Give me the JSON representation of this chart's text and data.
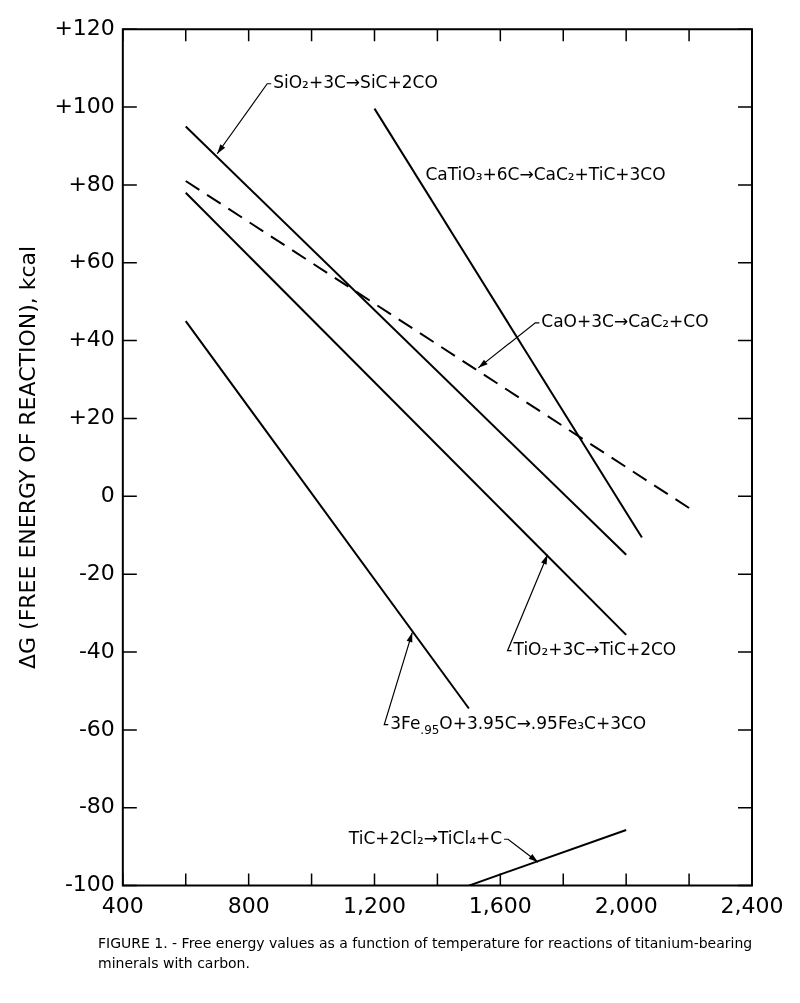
{
  "chart_data": {
    "type": "line",
    "title": "FIGURE 1. - Free energy values as a function of temperature for reactions of titanium-bearing minerals with carbon.",
    "ylabel": "ΔG (FREE ENERGY OF REACTION), kcal",
    "series": [
      {
        "color": "#000000",
        "x": [
          600,
          2000
        ],
        "values": [
          95,
          -15
        ]
      },
      {
        "color": "#000000",
        "x": [
          1200,
          2050
        ],
        "values": [
          99.6,
          -10.6
        ]
      },
      {
        "color": "#000000",
        "x": [
          600,
          2200
        ],
        "values": [
          81,
          -3
        ],
        "line_style": "dashed"
      },
      {
        "color": "#000000",
        "x": [
          600,
          2000
        ],
        "values": [
          78,
          -35.6
        ]
      },
      {
        "color": "#000000",
        "x": [
          600,
          1500
        ],
        "values": [
          45,
          -54.5
        ]
      },
      {
        "color": "#000000",
        "x": [
          1500,
          2000
        ],
        "values": [
          -100,
          -85.7
        ]
      }
    ],
    "annotations": [
      {
        "text": "SiO₂+3C→SiC+2CO",
        "x": 700,
        "y": 88
      },
      {
        "text": "CaTiO₃+6C→CaC₂+TiC+3CO",
        "x": 1330,
        "y": 83
      },
      {
        "text": "CaO+3C→CaC₂+CO",
        "x": 1530,
        "y": 33
      },
      {
        "text": "TiO₂+3C→TiC+2CO",
        "x": 1750,
        "y": -15
      },
      {
        "text": "3Fe$_{.95}$O+3.95C→.95Fe₃C+3CO",
        "x": 1320,
        "y": -35
      },
      {
        "text": "TiC+2Cl₂→TiCl₄+C",
        "x": 1720,
        "y": -94
      }
    ],
    "xlim": [
      400,
      2400
    ],
    "xticks": [
      400,
      {
        "value": 600,
        "label": null
      },
      800,
      {
        "value": 1000,
        "label": null
      },
      {
        "value": 1200,
        "label": "1,200"
      },
      {
        "value": 1400,
        "label": null
      },
      {
        "value": 1600,
        "label": "1,600"
      },
      {
        "value": 1800,
        "label": null
      },
      {
        "value": 2000,
        "label": "2,000"
      },
      {
        "value": 2200,
        "label": null
      },
      {
        "value": 2400,
        "label": "2,400"
      }
    ],
    "ylim": [
      -100,
      120
    ],
    "yticks": [
      -100,
      -80,
      -60,
      -40,
      -20,
      0,
      {
        "value": 20,
        "label": "+20"
      },
      {
        "value": 40,
        "label": "+40"
      },
      {
        "value": 60,
        "label": "+60"
      },
      {
        "value": 80,
        "label": "+80"
      },
      {
        "value": 100,
        "label": "+100"
      },
      {
        "value": 120,
        "label": "+120"
      }
    ],
    "grid": false,
    "legend": false,
    "marker": "none",
    "line_style": "solid"
  }
}
